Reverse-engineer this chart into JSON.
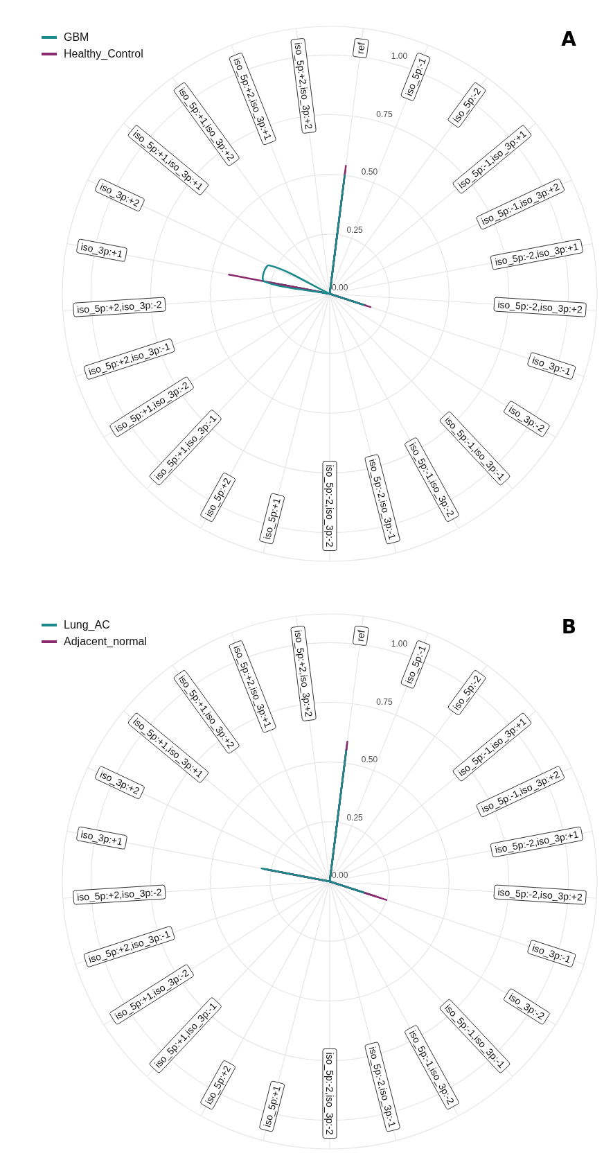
{
  "chart_data": [
    {
      "type": "radar",
      "title": "A",
      "categories": [
        "ref",
        "iso_5p:-1",
        "iso_5p:-2",
        "iso_5p:-1,iso_3p:+1",
        "iso_5p:-1,iso_3p:+2",
        "iso_5p:-2,iso_3p:+1",
        "iso_5p:-2,iso_3p:+2",
        "iso_3p:-1",
        "iso_3p:-2",
        "iso_5p:-1,iso_3p:-1",
        "iso_5p:-1,iso_3p:-2",
        "iso_5p:-2,iso_3p:-1",
        "iso_5p:-2,iso_3p:-2",
        "iso_5p:+1",
        "iso_5p:+2",
        "iso_5p:+1,iso_3p:-1",
        "iso_5p:+1,iso_3p:-2",
        "iso_5p:+2,iso_3p:-1",
        "iso_5p:+2,iso_3p:-2",
        "iso_3p:+1",
        "iso_3p:+2",
        "iso_5p:+1,iso_3p:+1",
        "iso_5p:+1,iso_3p:+2",
        "iso_5p:+2,iso_3p:+1",
        "iso_5p:+2,iso_3p:+2"
      ],
      "series": [
        {
          "name": "GBM",
          "color": "#1a8a8a",
          "values": [
            0.5,
            0,
            0,
            0,
            0,
            0,
            0,
            0.15,
            0,
            0,
            0,
            0,
            0,
            0,
            0,
            0,
            0,
            0,
            0,
            0.28,
            0.28,
            0,
            0,
            0,
            0
          ]
        },
        {
          "name": "Healthy_Control",
          "color": "#8b2a6e",
          "values": [
            0.54,
            0,
            0,
            0,
            0,
            0,
            0,
            0.18,
            0,
            0,
            0,
            0,
            0,
            0,
            0,
            0,
            0,
            0,
            0,
            0.43,
            0,
            0,
            0,
            0,
            0
          ]
        },
        {
          "color": "#1a8a8a",
          "values": [
            0.45,
            0,
            0,
            0,
            0,
            0,
            0,
            0.12,
            0,
            0,
            0,
            0,
            0,
            0,
            0,
            0,
            0,
            0,
            0,
            0.26,
            0,
            0,
            0,
            0,
            0
          ]
        },
        {
          "color": "#1a8a8a",
          "values": [
            0.48,
            0,
            0,
            0,
            0,
            0,
            0,
            0.1,
            0,
            0,
            0,
            0,
            0,
            0,
            0,
            0,
            0,
            0,
            0,
            0.22,
            0,
            0,
            0,
            0,
            0
          ]
        },
        {
          "color": "#8b2a6e",
          "values": [
            0.3,
            0,
            0,
            0,
            0,
            0,
            0,
            0.16,
            0,
            0,
            0,
            0,
            0,
            0,
            0,
            0,
            0,
            0,
            0,
            0.2,
            0,
            0,
            0,
            0,
            0
          ]
        },
        {
          "color": "#8b2a6e",
          "values": [
            0.52,
            0,
            0,
            0,
            0,
            0,
            0,
            0.14,
            0,
            0,
            0,
            0,
            0,
            0,
            0,
            0,
            0,
            0,
            0,
            0.25,
            0,
            0,
            0,
            0,
            0
          ]
        }
      ],
      "ylim": [
        0,
        1.12
      ],
      "yticks": [
        {
          "value": 0,
          "label": "0.00"
        },
        {
          "value": 0.25,
          "label": "0.25"
        },
        {
          "value": 0.5,
          "label": "0.50"
        },
        {
          "value": 0.75,
          "label": "0.75"
        },
        {
          "value": 1,
          "label": "1.00"
        }
      ],
      "grid": true,
      "legend": "top left",
      "marker": "none"
    },
    {
      "type": "radar",
      "title": "B",
      "categories": [
        "ref",
        "iso_5p:-1",
        "iso_5p:-2",
        "iso_5p:-1,iso_3p:+1",
        "iso_5p:-1,iso_3p:+2",
        "iso_5p:-2,iso_3p:+1",
        "iso_5p:-2,iso_3p:+2",
        "iso_3p:-1",
        "iso_3p:-2",
        "iso_5p:-1,iso_3p:-1",
        "iso_5p:-1,iso_3p:-2",
        "iso_5p:-2,iso_3p:-1",
        "iso_5p:-2,iso_3p:-2",
        "iso_5p:+1",
        "iso_5p:+2",
        "iso_5p:+1,iso_3p:-1",
        "iso_5p:+1,iso_3p:-2",
        "iso_5p:+2,iso_3p:-1",
        "iso_5p:+2,iso_3p:-2",
        "iso_3p:+1",
        "iso_3p:+2",
        "iso_5p:+1,iso_3p:+1",
        "iso_5p:+1,iso_3p:+2",
        "iso_5p:+2,iso_3p:+1",
        "iso_5p:+2,iso_3p:+2"
      ],
      "series": [
        {
          "name": "Lung_AC",
          "color": "#1a8a8a",
          "values": [
            0.55,
            0,
            0,
            0,
            0,
            0,
            0,
            0.15,
            0,
            0,
            0,
            0,
            0,
            0,
            0,
            0,
            0,
            0,
            0,
            0.29,
            0,
            0,
            0,
            0,
            0
          ]
        },
        {
          "name": "Adjacent_normal",
          "color": "#8b2a6e",
          "values": [
            0.59,
            0,
            0,
            0,
            0,
            0,
            0,
            0.25,
            0,
            0,
            0,
            0,
            0,
            0,
            0,
            0,
            0,
            0,
            0,
            0.28,
            0,
            0,
            0,
            0,
            0
          ]
        },
        {
          "color": "#1a8a8a",
          "values": [
            0.5,
            0,
            0,
            0,
            0,
            0,
            0,
            0.12,
            0,
            0,
            0,
            0,
            0,
            0,
            0,
            0,
            0,
            0,
            0,
            0.27,
            0,
            0,
            0,
            0,
            0
          ]
        },
        {
          "color": "#1a8a8a",
          "values": [
            0.58,
            0,
            0,
            0,
            0,
            0,
            0,
            0.18,
            0,
            0,
            0,
            0,
            0,
            0,
            0,
            0,
            0,
            0,
            0,
            0.28,
            0,
            0,
            0,
            0,
            0
          ]
        },
        {
          "color": "#8b2a6e",
          "values": [
            0.33,
            0,
            0,
            0,
            0,
            0,
            0,
            0.2,
            0,
            0,
            0,
            0,
            0,
            0,
            0,
            0,
            0,
            0,
            0,
            0.25,
            0,
            0,
            0,
            0,
            0
          ]
        },
        {
          "color": "#8b2a6e",
          "values": [
            0.56,
            0,
            0,
            0,
            0,
            0,
            0,
            0.22,
            0,
            0,
            0,
            0,
            0,
            0,
            0,
            0,
            0,
            0,
            0,
            0.27,
            0,
            0,
            0,
            0,
            0
          ]
        }
      ],
      "ylim": [
        0,
        1.12
      ],
      "yticks": [
        {
          "value": 0,
          "label": "0.00"
        },
        {
          "value": 0.25,
          "label": "0.25"
        },
        {
          "value": 0.5,
          "label": "0.50"
        },
        {
          "value": 0.75,
          "label": "0.75"
        },
        {
          "value": 1,
          "label": "1.00"
        }
      ],
      "grid": true,
      "legend": "top left",
      "marker": "none"
    }
  ]
}
